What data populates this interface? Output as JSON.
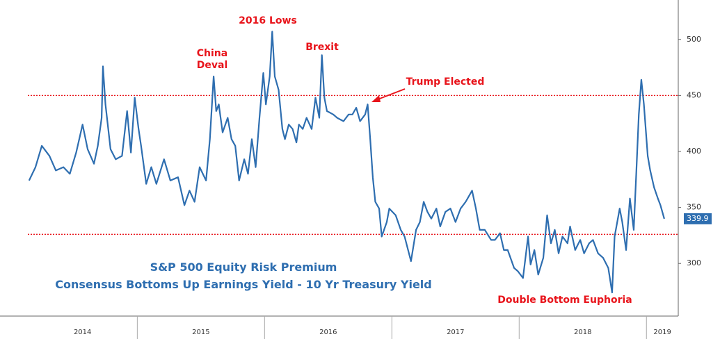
{
  "chart_data": {
    "type": "line",
    "title": "S&P 500 Equity Risk Premium",
    "subtitle": "Consensus Bottoms Up Earnings Yield - 10 Yr Treasury Yield",
    "annotations": [
      "2016 Lows",
      "China\nDeval",
      "Brexit",
      "Trump Elected",
      "Double Bottom Euphoria"
    ],
    "xlim": [
      2014.14,
      2019.25
    ],
    "xticks": [
      2015,
      2016,
      2017,
      2018,
      2019
    ],
    "year_labels": [
      "2014",
      "2015",
      "2016",
      "2017",
      "2018",
      "2019"
    ],
    "ylim": [
      253,
      529
    ],
    "yticks": [
      300,
      350,
      400,
      450,
      500
    ],
    "reference_lines": [
      450,
      326
    ],
    "reference_color": "#e8141b",
    "x": [
      2014.15,
      2014.2,
      2014.25,
      2014.31,
      2014.36,
      2014.42,
      2014.47,
      2014.52,
      2014.57,
      2014.61,
      2014.66,
      2014.69,
      2014.72,
      2014.73,
      2014.75,
      2014.79,
      2014.83,
      2014.88,
      2014.92,
      2014.95,
      2014.98,
      2015.01,
      2015.03,
      2015.07,
      2015.11,
      2015.15,
      2015.21,
      2015.26,
      2015.32,
      2015.37,
      2015.41,
      2015.45,
      2015.49,
      2015.54,
      2015.57,
      2015.6,
      2015.62,
      2015.64,
      2015.67,
      2015.71,
      2015.74,
      2015.77,
      2015.8,
      2015.84,
      2015.87,
      2015.9,
      2015.93,
      2015.96,
      2015.99,
      2016.01,
      2016.04,
      2016.06,
      2016.08,
      2016.11,
      2016.14,
      2016.16,
      2016.19,
      2016.22,
      2016.25,
      2016.27,
      2016.3,
      2016.33,
      2016.37,
      2016.4,
      2016.43,
      2016.45,
      2016.47,
      2016.49,
      2016.54,
      2016.57,
      2016.62,
      2016.66,
      2016.69,
      2016.72,
      2016.75,
      2016.79,
      2016.81,
      2016.83,
      2016.85,
      2016.87,
      2016.9,
      2016.92,
      2016.96,
      2016.98,
      2017.03,
      2017.07,
      2017.1,
      2017.15,
      2017.19,
      2017.22,
      2017.25,
      2017.28,
      2017.31,
      2017.35,
      2017.38,
      2017.42,
      2017.46,
      2017.5,
      2017.54,
      2017.58,
      2017.63,
      2017.66,
      2017.69,
      2017.73,
      2017.78,
      2017.81,
      2017.85,
      2017.88,
      2017.91,
      2017.96,
      2017.99,
      2018.03,
      2018.07,
      2018.09,
      2018.12,
      2018.15,
      2018.19,
      2018.22,
      2018.25,
      2018.28,
      2018.31,
      2018.34,
      2018.38,
      2018.4,
      2018.44,
      2018.48,
      2018.51,
      2018.55,
      2018.58,
      2018.62,
      2018.66,
      2018.7,
      2018.73,
      2018.75,
      2018.79,
      2018.81,
      2018.84,
      2018.87,
      2018.9,
      2018.92,
      2018.94,
      2018.96,
      2018.98,
      2019.01,
      2019.03,
      2019.06,
      2019.09,
      2019.11,
      2019.14
    ],
    "series": [
      {
        "color": "#2e6eb0",
        "values": [
          374,
          386,
          405,
          396,
          383,
          386,
          380,
          399,
          424,
          402,
          389,
          405,
          430,
          476,
          442,
          402,
          393,
          396,
          436,
          399,
          448,
          420,
          405,
          371,
          386,
          371,
          393,
          374,
          377,
          352,
          365,
          355,
          386,
          374,
          411,
          467,
          436,
          442,
          417,
          430,
          411,
          405,
          374,
          393,
          380,
          411,
          386,
          430,
          470,
          442,
          467,
          507,
          467,
          455,
          420,
          411,
          424,
          420,
          408,
          424,
          420,
          430,
          420,
          448,
          430,
          486,
          448,
          436,
          433,
          430,
          427,
          433,
          433,
          439,
          427,
          433,
          442,
          411,
          377,
          355,
          349,
          324,
          337,
          349,
          343,
          330,
          324,
          302,
          330,
          337,
          355,
          346,
          340,
          349,
          333,
          346,
          349,
          337,
          349,
          355,
          365,
          349,
          330,
          330,
          321,
          321,
          327,
          312,
          312,
          296,
          293,
          287,
          324,
          299,
          312,
          290,
          305,
          343,
          318,
          330,
          309,
          324,
          318,
          333,
          312,
          321,
          309,
          318,
          321,
          309,
          305,
          296,
          274,
          324,
          349,
          337,
          312,
          358,
          330,
          380,
          433,
          464,
          442,
          396,
          383,
          368,
          358,
          352,
          339.9
        ]
      }
    ]
  }
}
